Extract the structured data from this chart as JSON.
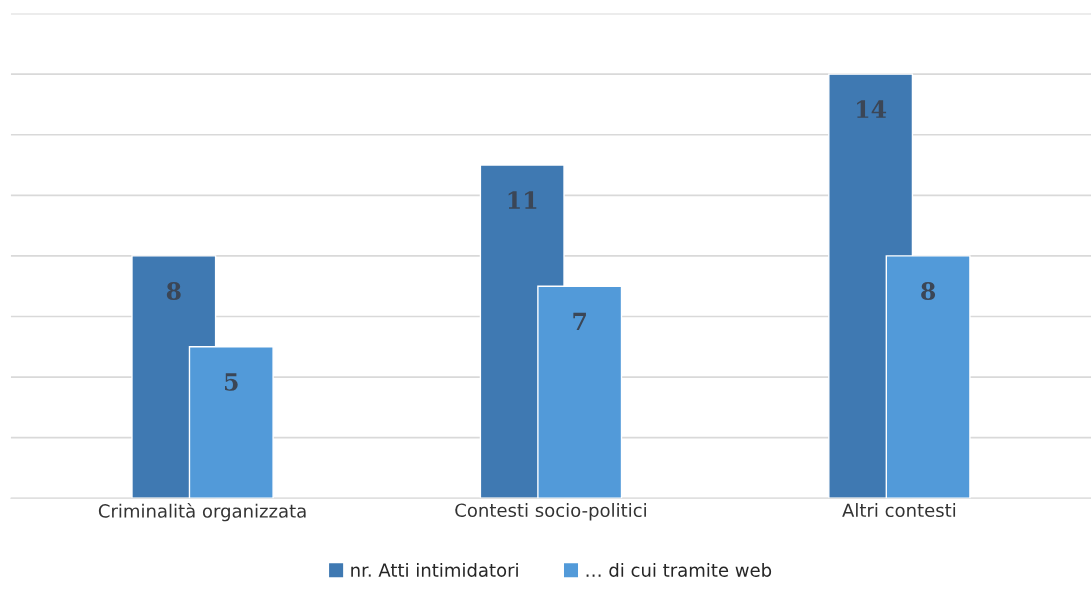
{
  "chart_data": {
    "type": "bar",
    "categories": [
      "Criminalità organizzata",
      "Contesti socio-politici",
      "Altri contesti"
    ],
    "series": [
      {
        "name": "nr. Atti intimidatori",
        "color": "#3f79b2",
        "values": [
          8,
          11,
          14
        ]
      },
      {
        "name": "… di cui tramite web",
        "color": "#529ad9",
        "values": [
          5,
          7,
          8
        ]
      }
    ],
    "ylim": [
      0,
      16
    ],
    "yticks": [
      {
        "value": 0,
        "label": null
      },
      {
        "value": 2,
        "label": null
      },
      {
        "value": 4,
        "label": null
      },
      {
        "value": 6,
        "label": null
      },
      {
        "value": 8,
        "label": null
      },
      {
        "value": 10,
        "label": null
      },
      {
        "value": 12,
        "label": null
      },
      {
        "value": 14,
        "label": null
      },
      {
        "value": 16,
        "label": null
      }
    ],
    "tick_labels": "x",
    "grid": "y",
    "legend": "bottom",
    "data_labels": true
  }
}
